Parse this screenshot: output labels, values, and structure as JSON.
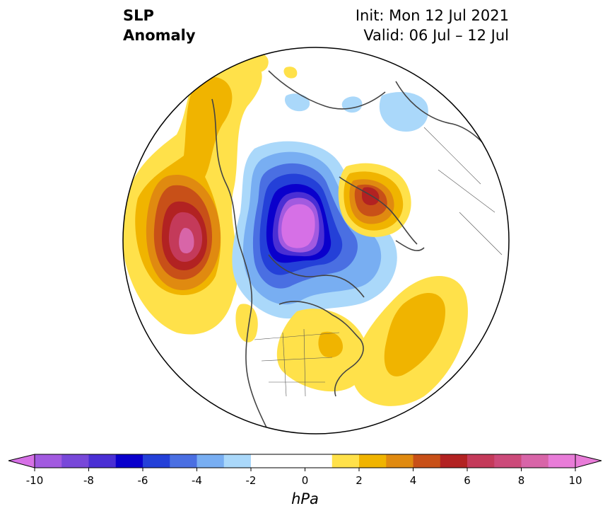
{
  "title": {
    "left_line1": "SLP",
    "left_line2": "Anomaly",
    "right_line1": "Init: Mon 12 Jul 2021",
    "right_line2": "Valid: 06 Jul – 12 Jul"
  },
  "colorbar": {
    "unit": "hPa",
    "tick_labels": [
      "-10",
      "-8",
      "-6",
      "-4",
      "-2",
      "0",
      "2",
      "4",
      "6",
      "8",
      "10"
    ],
    "levels": [
      -10,
      -9,
      -8,
      -7,
      -6,
      -5,
      -4,
      -3,
      -2,
      -1,
      1,
      2,
      3,
      4,
      5,
      6,
      7,
      8,
      9,
      10
    ],
    "colors": [
      "#a25ae0",
      "#7848d9",
      "#4a2fd4",
      "#0a00cc",
      "#2440d8",
      "#4a6fe2",
      "#78aef2",
      "#aad8fa",
      "#ffffff",
      "#ffffff",
      "#ffe14a",
      "#f0b400",
      "#e08a10",
      "#c85018",
      "#b22222",
      "#c43a5a",
      "#cc4a7a",
      "#d865a8",
      "#e87cd8"
    ],
    "extend_low_color": "#d670e6",
    "extend_high_color": "#e87cd8"
  },
  "map": {
    "projection": "north-polar-stereographic",
    "field": "sea level pressure anomaly",
    "features": [
      {
        "name": "north-pacific-high",
        "peak_hPa": 9
      },
      {
        "name": "arctic-low",
        "peak_hPa": -10
      },
      {
        "name": "scandinavia-europe-high",
        "peak_hPa": 6
      },
      {
        "name": "north-atlantic-high",
        "peak_hPa": 3
      },
      {
        "name": "eastern-north-america-high",
        "peak_hPa": 2
      }
    ]
  }
}
